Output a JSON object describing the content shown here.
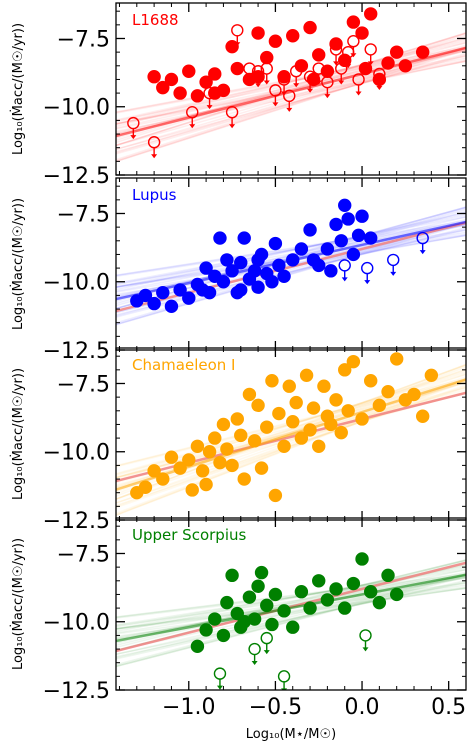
{
  "chart_data": {
    "type": "scatter",
    "xlabel": "Log₁₀(M⋆/M☉)",
    "ylabel": "Log₁₀(Ṁacc/(M☉/yr))",
    "xlim": [
      -1.42,
      0.6
    ],
    "ylim": [
      -12.5,
      -6.2
    ],
    "x_ticks": [
      -1.0,
      -0.5,
      0.0,
      0.5
    ],
    "x_tick_labels": [
      "−1.0",
      "−0.5",
      "0.0",
      "0.5"
    ],
    "y_ticks": [
      -7.5,
      -10.0,
      -12.5
    ],
    "y_tick_labels": [
      "−7.5",
      "−10.0",
      "−12.5"
    ],
    "reference_line_color": "#f08080",
    "panels": [
      {
        "name": "L1688",
        "color": "#ff0000",
        "fit": {
          "slope": 1.6,
          "intercept": -8.8
        },
        "detections": [
          [
            -1.2,
            -8.9
          ],
          [
            -1.15,
            -9.3
          ],
          [
            -1.1,
            -9.0
          ],
          [
            -1.05,
            -9.5
          ],
          [
            -1.0,
            -8.7
          ],
          [
            -0.95,
            -9.6
          ],
          [
            -0.9,
            -9.1
          ],
          [
            -0.85,
            -8.8
          ],
          [
            -0.8,
            -9.4
          ],
          [
            -0.75,
            -7.8
          ],
          [
            -0.72,
            -8.6
          ],
          [
            -0.65,
            -9.0
          ],
          [
            -0.6,
            -7.3
          ],
          [
            -0.55,
            -8.2
          ],
          [
            -0.5,
            -7.6
          ],
          [
            -0.45,
            -8.9
          ],
          [
            -0.4,
            -7.4
          ],
          [
            -0.35,
            -8.5
          ],
          [
            -0.3,
            -7.1
          ],
          [
            -0.28,
            -9.0
          ],
          [
            -0.25,
            -8.1
          ],
          [
            -0.2,
            -8.7
          ],
          [
            -0.15,
            -7.7
          ],
          [
            -0.1,
            -8.3
          ],
          [
            -0.05,
            -6.9
          ],
          [
            0.0,
            -7.3
          ],
          [
            0.02,
            -8.6
          ],
          [
            0.05,
            -6.6
          ],
          [
            0.1,
            -9.0
          ],
          [
            0.15,
            -8.4
          ],
          [
            0.2,
            -8.0
          ],
          [
            0.25,
            -8.5
          ],
          [
            0.35,
            -8.0
          ],
          [
            -0.6,
            -8.9
          ],
          [
            -0.85,
            -9.5
          ]
        ],
        "upper_limits": [
          [
            -1.32,
            -10.6
          ],
          [
            -1.2,
            -11.3
          ],
          [
            -0.98,
            -10.2
          ],
          [
            -0.88,
            -9.5
          ],
          [
            -0.75,
            -10.2
          ],
          [
            -0.72,
            -7.2
          ],
          [
            -0.65,
            -8.6
          ],
          [
            -0.6,
            -8.7
          ],
          [
            -0.55,
            -8.6
          ],
          [
            -0.5,
            -9.4
          ],
          [
            -0.45,
            -9.0
          ],
          [
            -0.42,
            -9.6
          ],
          [
            -0.38,
            -8.7
          ],
          [
            -0.3,
            -8.9
          ],
          [
            -0.25,
            -8.6
          ],
          [
            -0.15,
            -7.9
          ],
          [
            -0.12,
            -8.6
          ],
          [
            -0.08,
            -8.0
          ],
          [
            -0.05,
            -7.6
          ],
          [
            -0.02,
            -9.0
          ],
          [
            0.05,
            -7.9
          ],
          [
            0.1,
            -8.8
          ],
          [
            -0.2,
            -9.1
          ]
        ]
      },
      {
        "name": "Lupus",
        "color": "#0000ff",
        "fit": {
          "slope": 1.4,
          "intercept": -8.65
        },
        "detections": [
          [
            -1.3,
            -10.7
          ],
          [
            -1.25,
            -10.5
          ],
          [
            -1.2,
            -10.8
          ],
          [
            -1.15,
            -10.4
          ],
          [
            -1.1,
            -10.9
          ],
          [
            -1.05,
            -10.3
          ],
          [
            -1.0,
            -10.6
          ],
          [
            -0.95,
            -10.1
          ],
          [
            -0.9,
            -9.5
          ],
          [
            -0.88,
            -10.4
          ],
          [
            -0.85,
            -9.8
          ],
          [
            -0.82,
            -8.4
          ],
          [
            -0.8,
            -10.0
          ],
          [
            -0.78,
            -9.2
          ],
          [
            -0.75,
            -9.6
          ],
          [
            -0.72,
            -10.4
          ],
          [
            -0.7,
            -9.3
          ],
          [
            -0.68,
            -8.4
          ],
          [
            -0.65,
            -9.9
          ],
          [
            -0.62,
            -9.6
          ],
          [
            -0.6,
            -10.2
          ],
          [
            -0.58,
            -9.0
          ],
          [
            -0.55,
            -9.7
          ],
          [
            -0.52,
            -10.0
          ],
          [
            -0.5,
            -8.6
          ],
          [
            -0.48,
            -9.4
          ],
          [
            -0.45,
            -9.8
          ],
          [
            -0.4,
            -9.2
          ],
          [
            -0.35,
            -8.8
          ],
          [
            -0.3,
            -8.1
          ],
          [
            -0.28,
            -9.2
          ],
          [
            -0.25,
            -9.4
          ],
          [
            -0.2,
            -8.8
          ],
          [
            -0.18,
            -9.6
          ],
          [
            -0.15,
            -7.9
          ],
          [
            -0.12,
            -8.5
          ],
          [
            -0.1,
            -7.2
          ],
          [
            -0.08,
            -7.7
          ],
          [
            -0.05,
            -9.0
          ],
          [
            -0.02,
            -8.3
          ],
          [
            0.0,
            -7.6
          ],
          [
            0.05,
            -8.4
          ],
          [
            -0.6,
            -9.2
          ],
          [
            -0.7,
            -10.3
          ],
          [
            -0.92,
            -10.3
          ]
        ],
        "upper_limits": [
          [
            -0.1,
            -9.4
          ],
          [
            0.03,
            -9.5
          ],
          [
            0.18,
            -9.2
          ],
          [
            0.35,
            -8.4
          ]
        ]
      },
      {
        "name": "Chamaeleon I",
        "color": "#ffa500",
        "fit": {
          "slope": 2.0,
          "intercept": -8.55
        },
        "detections": [
          [
            -1.3,
            -11.5
          ],
          [
            -1.25,
            -11.3
          ],
          [
            -1.2,
            -10.7
          ],
          [
            -1.15,
            -11.0
          ],
          [
            -1.1,
            -10.2
          ],
          [
            -1.05,
            -10.6
          ],
          [
            -1.0,
            -10.3
          ],
          [
            -0.98,
            -11.4
          ],
          [
            -0.95,
            -9.8
          ],
          [
            -0.92,
            -10.7
          ],
          [
            -0.9,
            -11.2
          ],
          [
            -0.88,
            -10.0
          ],
          [
            -0.85,
            -9.5
          ],
          [
            -0.82,
            -10.4
          ],
          [
            -0.8,
            -9.0
          ],
          [
            -0.78,
            -9.9
          ],
          [
            -0.75,
            -10.5
          ],
          [
            -0.72,
            -8.8
          ],
          [
            -0.7,
            -9.4
          ],
          [
            -0.68,
            -11.0
          ],
          [
            -0.65,
            -7.9
          ],
          [
            -0.62,
            -9.6
          ],
          [
            -0.6,
            -8.3
          ],
          [
            -0.58,
            -10.6
          ],
          [
            -0.55,
            -9.1
          ],
          [
            -0.52,
            -7.4
          ],
          [
            -0.5,
            -11.6
          ],
          [
            -0.48,
            -8.6
          ],
          [
            -0.45,
            -9.8
          ],
          [
            -0.42,
            -7.6
          ],
          [
            -0.4,
            -8.9
          ],
          [
            -0.38,
            -8.2
          ],
          [
            -0.35,
            -9.5
          ],
          [
            -0.32,
            -7.2
          ],
          [
            -0.3,
            -9.2
          ],
          [
            -0.28,
            -8.4
          ],
          [
            -0.25,
            -9.8
          ],
          [
            -0.22,
            -7.6
          ],
          [
            -0.2,
            -8.7
          ],
          [
            -0.18,
            -9.0
          ],
          [
            -0.15,
            -8.1
          ],
          [
            -0.12,
            -9.3
          ],
          [
            -0.1,
            -7.0
          ],
          [
            -0.08,
            -8.5
          ],
          [
            -0.05,
            -6.7
          ],
          [
            0.0,
            -8.8
          ],
          [
            0.05,
            -7.4
          ],
          [
            0.1,
            -8.3
          ],
          [
            0.15,
            -7.8
          ],
          [
            0.2,
            -6.6
          ],
          [
            0.25,
            -8.1
          ],
          [
            0.3,
            -7.9
          ],
          [
            0.35,
            -8.7
          ],
          [
            0.4,
            -7.2
          ]
        ],
        "upper_limits": []
      },
      {
        "name": "Upper Scorpius",
        "color": "#008000",
        "fit": {
          "slope": 1.2,
          "intercept": -9.0
        },
        "detections": [
          [
            -0.95,
            -10.9
          ],
          [
            -0.9,
            -10.3
          ],
          [
            -0.85,
            -9.9
          ],
          [
            -0.8,
            -10.5
          ],
          [
            -0.78,
            -9.3
          ],
          [
            -0.75,
            -8.3
          ],
          [
            -0.72,
            -9.7
          ],
          [
            -0.7,
            -10.2
          ],
          [
            -0.65,
            -9.1
          ],
          [
            -0.62,
            -9.9
          ],
          [
            -0.6,
            -8.7
          ],
          [
            -0.55,
            -9.4
          ],
          [
            -0.52,
            -10.1
          ],
          [
            -0.5,
            -9.0
          ],
          [
            -0.45,
            -9.6
          ],
          [
            -0.4,
            -10.2
          ],
          [
            -0.35,
            -8.9
          ],
          [
            -0.3,
            -9.5
          ],
          [
            -0.25,
            -8.5
          ],
          [
            -0.2,
            -9.2
          ],
          [
            -0.15,
            -8.8
          ],
          [
            -0.1,
            -9.5
          ],
          [
            -0.05,
            -8.6
          ],
          [
            0.0,
            -7.7
          ],
          [
            0.05,
            -8.9
          ],
          [
            0.1,
            -9.3
          ],
          [
            0.15,
            -8.3
          ],
          [
            0.2,
            -9.0
          ],
          [
            -0.58,
            -8.2
          ],
          [
            -0.68,
            -10.0
          ]
        ],
        "upper_limits": [
          [
            -0.82,
            -11.9
          ],
          [
            -0.62,
            -11.0
          ],
          [
            -0.55,
            -10.6
          ],
          [
            -0.45,
            -12.0
          ],
          [
            0.02,
            -10.5
          ]
        ]
      }
    ]
  }
}
